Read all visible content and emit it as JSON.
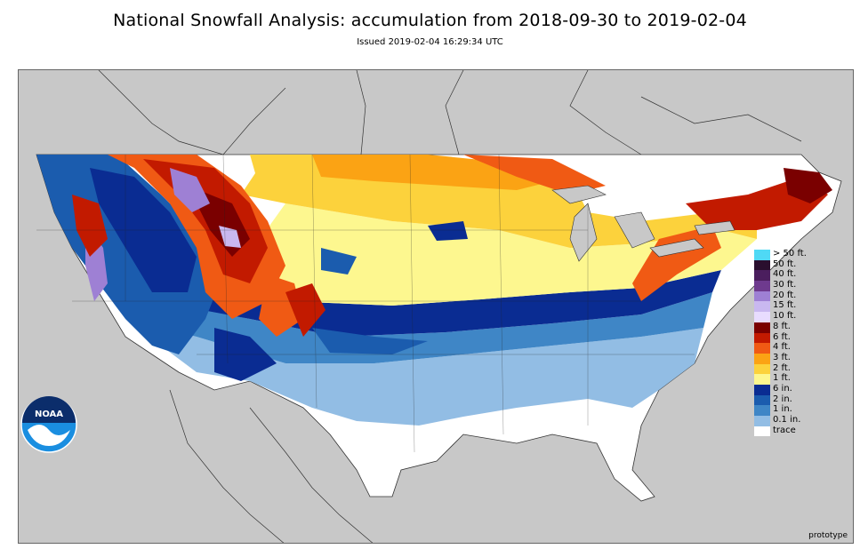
{
  "title": "National Snowfall Analysis: accumulation from 2018-09-30 to 2019-02-04",
  "subtitle": "Issued 2019-02-04 16:29:34 UTC",
  "watermark": "prototype",
  "logo": {
    "text": "NOAA",
    "icon": "noaa-logo"
  },
  "colors": {
    "background_land": "#c8c8c8",
    "ocean": "#c8c8c8",
    "border_lines": "#333333"
  },
  "legend": [
    {
      "label": "> 50 ft.",
      "color": "#4fd9f5"
    },
    {
      "label": "50 ft.",
      "color": "#2a0f2e"
    },
    {
      "label": "40 ft.",
      "color": "#4b1e5e"
    },
    {
      "label": "30 ft.",
      "color": "#6e3a8e"
    },
    {
      "label": "20 ft.",
      "color": "#9e80d4"
    },
    {
      "label": "15 ft.",
      "color": "#c9b8f0"
    },
    {
      "label": "10 ft.",
      "color": "#e8dcff"
    },
    {
      "label": "8 ft.",
      "color": "#7a0000"
    },
    {
      "label": "6 ft.",
      "color": "#c21a00"
    },
    {
      "label": "4 ft.",
      "color": "#f05a14"
    },
    {
      "label": "3 ft.",
      "color": "#fba314"
    },
    {
      "label": "2 ft.",
      "color": "#fcd23c"
    },
    {
      "label": "1 ft.",
      "color": "#fdf78f"
    },
    {
      "label": "6 in.",
      "color": "#0a2c92"
    },
    {
      "label": "2 in.",
      "color": "#1b5cae"
    },
    {
      "label": "1 in.",
      "color": "#3f86c6"
    },
    {
      "label": "0.1 in.",
      "color": "#92bde4"
    },
    {
      "label": "trace",
      "color": "#ffffff"
    }
  ]
}
